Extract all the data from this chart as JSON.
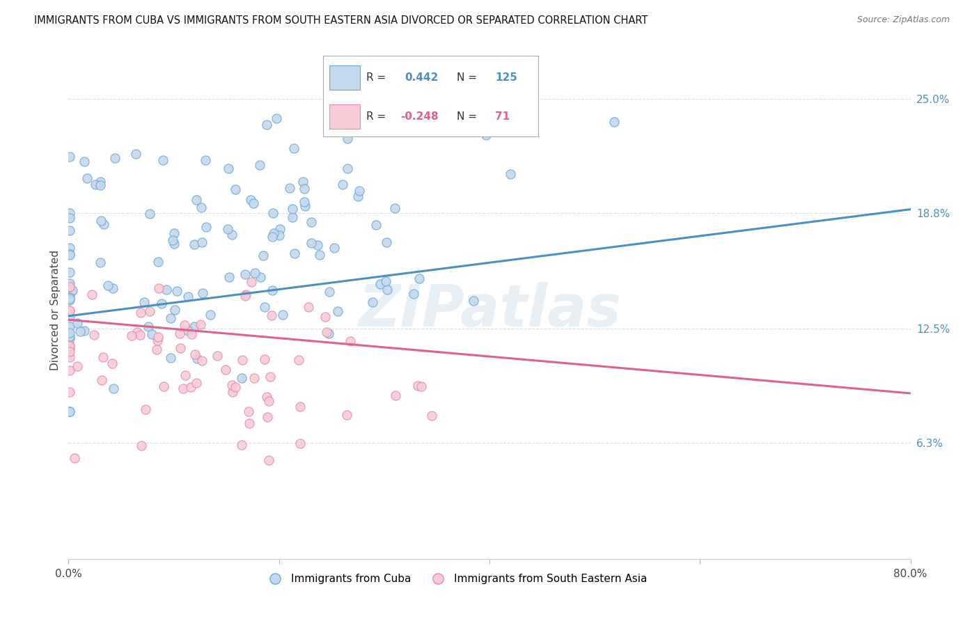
{
  "title": "IMMIGRANTS FROM CUBA VS IMMIGRANTS FROM SOUTH EASTERN ASIA DIVORCED OR SEPARATED CORRELATION CHART",
  "source": "Source: ZipAtlas.com",
  "ylabel": "Divorced or Separated",
  "ytick_labels": [
    "25.0%",
    "18.8%",
    "12.5%",
    "6.3%"
  ],
  "ytick_values": [
    0.25,
    0.188,
    0.125,
    0.063
  ],
  "xlim": [
    0.0,
    0.8
  ],
  "ylim": [
    0.0,
    0.27
  ],
  "blue_color": "#c5d8ed",
  "blue_edge_color": "#6aaad4",
  "blue_line_color": "#4a90c4",
  "pink_color": "#f7ccd6",
  "pink_edge_color": "#e88aaa",
  "pink_line_color": "#e06090",
  "watermark": "ZIPatlas",
  "background_color": "#ffffff",
  "grid_color": "#dddddd",
  "title_fontsize": 10.5,
  "legend_label1": "R =",
  "legend_val1": "0.442",
  "legend_n1": "N =",
  "legend_nval1": "125",
  "legend_label2": "R =",
  "legend_val2": "-0.248",
  "legend_n2": "N =",
  "legend_nval2": "71",
  "cuba_trend_x0": 0.0,
  "cuba_trend_x1": 0.8,
  "cuba_trend_y0": 0.132,
  "cuba_trend_y1": 0.19,
  "sea_trend_x0": 0.0,
  "sea_trend_x1": 0.8,
  "sea_trend_y0": 0.13,
  "sea_trend_y1": 0.09
}
